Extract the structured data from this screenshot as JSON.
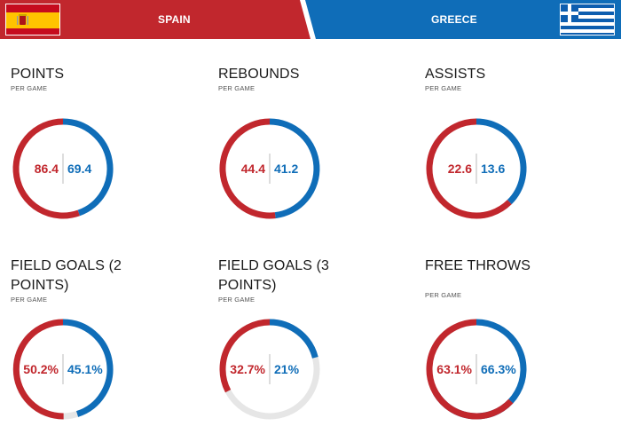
{
  "header": {
    "left_team": "SPAIN",
    "right_team": "GREECE"
  },
  "colors": {
    "spain": "#c1272d",
    "greece": "#0f6db8",
    "track": "#e6e6e6",
    "divider": "#bbbbbb"
  },
  "chart_data": [
    {
      "type": "pie",
      "title": "POINTS",
      "subtitle": "PER GAME",
      "spain": 86.4,
      "greece": 69.4,
      "spain_label": "86.4",
      "greece_label": "69.4",
      "kind": "share"
    },
    {
      "type": "pie",
      "title": "REBOUNDS",
      "subtitle": "PER GAME",
      "spain": 44.4,
      "greece": 41.2,
      "spain_label": "44.4",
      "greece_label": "41.2",
      "kind": "share"
    },
    {
      "type": "pie",
      "title": "ASSISTS",
      "subtitle": "PER GAME",
      "spain": 22.6,
      "greece": 13.6,
      "spain_label": "22.6",
      "greece_label": "13.6",
      "kind": "share"
    },
    {
      "type": "pie",
      "title": "FIELD GOALS (2 POINTS)",
      "subtitle": "PER GAME",
      "spain": 50.2,
      "greece": 45.1,
      "spain_label": "50.2%",
      "greece_label": "45.1%",
      "kind": "percent"
    },
    {
      "type": "pie",
      "title": "FIELD GOALS (3 POINTS)",
      "subtitle": "PER GAME",
      "spain": 32.7,
      "greece": 21,
      "spain_label": "32.7%",
      "greece_label": "21%",
      "kind": "percent"
    },
    {
      "type": "pie",
      "title": "FREE THROWS",
      "subtitle": "PER GAME",
      "spain": 63.1,
      "greece": 66.3,
      "spain_label": "63.1%",
      "greece_label": "66.3%",
      "kind": "percent"
    }
  ]
}
